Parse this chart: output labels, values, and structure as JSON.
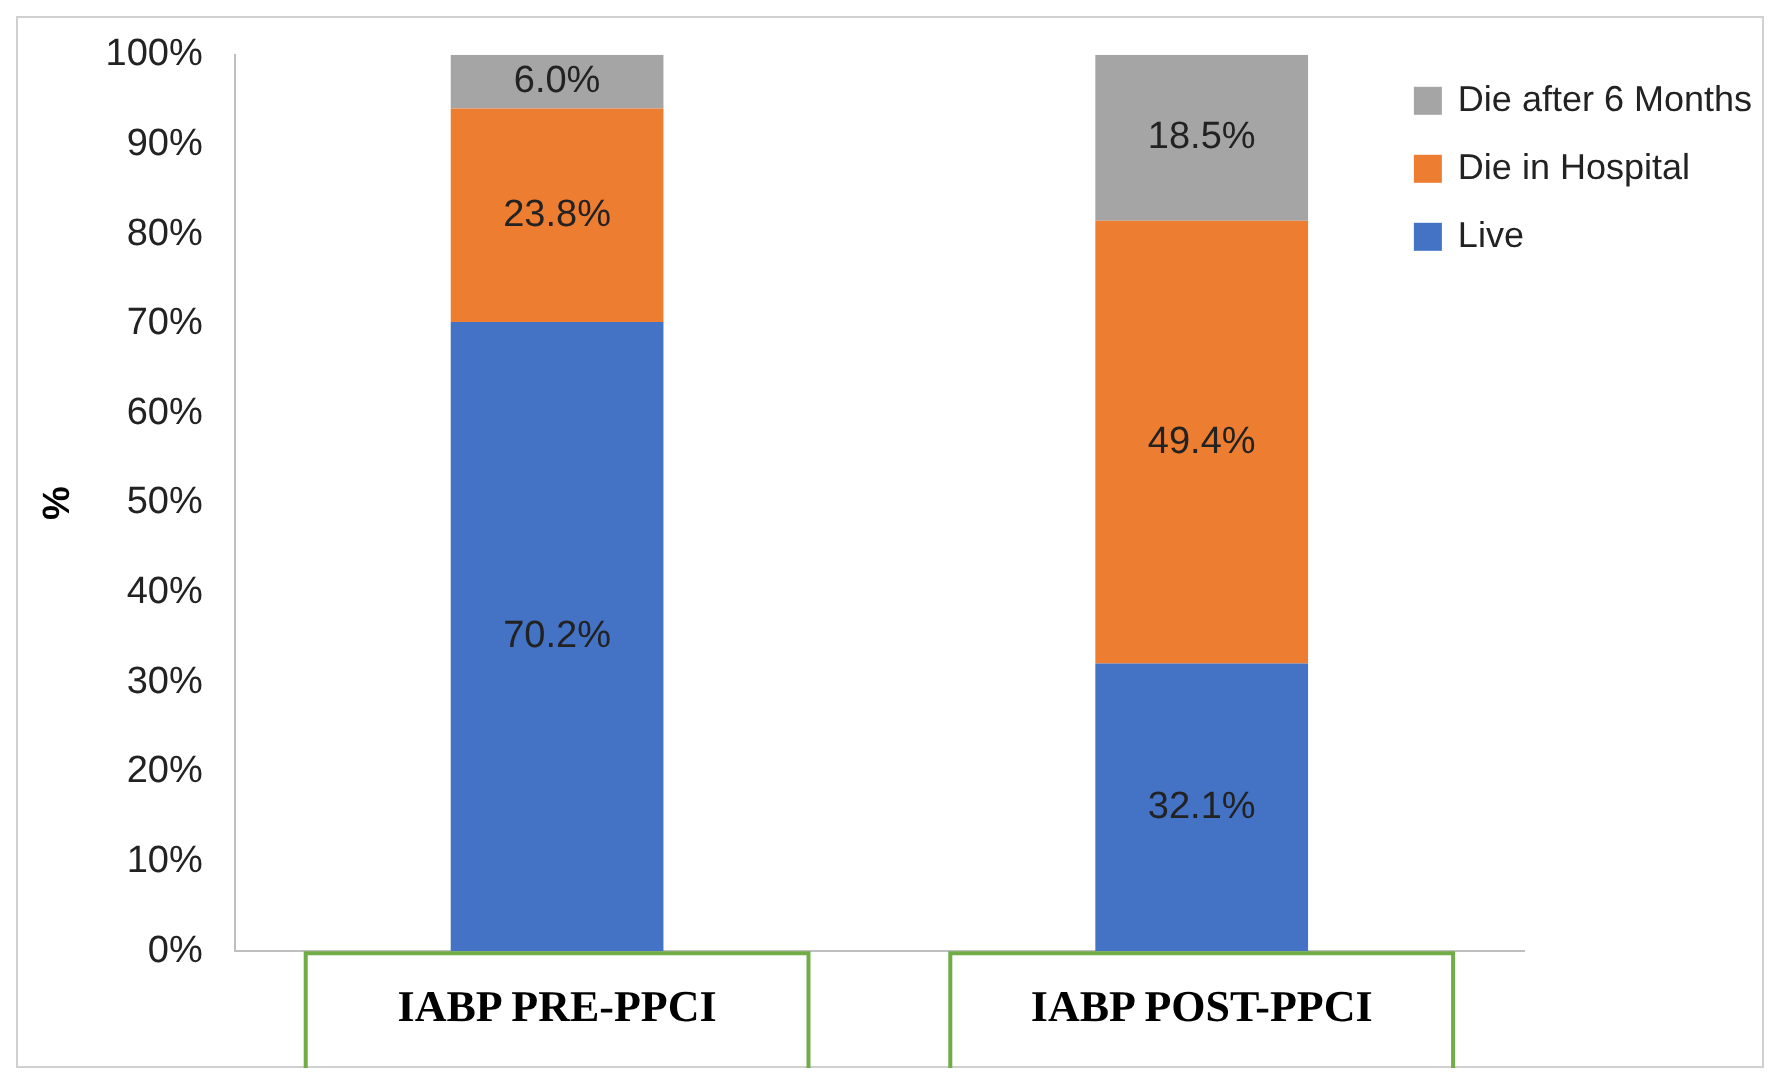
{
  "chart_data": {
    "type": "bar",
    "stacked": true,
    "ylabel": "%",
    "categories": [
      "IABP PRE-PPCI",
      "IABP POST-PPCI"
    ],
    "series": [
      {
        "name": "Live",
        "color": "#4472c4",
        "values": [
          70.2,
          32.1
        ],
        "value_labels": [
          "70.2%",
          "32.1%"
        ]
      },
      {
        "name": "Die in Hospital",
        "color": "#ed7d31",
        "values": [
          23.8,
          49.4
        ],
        "value_labels": [
          "23.8%",
          "49.4%"
        ]
      },
      {
        "name": "Die after 6 Months",
        "color": "#a5a5a5",
        "values": [
          6.0,
          18.5
        ],
        "value_labels": [
          "6.0%",
          "18.5%"
        ]
      }
    ],
    "ylim": [
      0,
      100
    ],
    "yticks": [
      {
        "value": 0,
        "label": "0%"
      },
      {
        "value": 10,
        "label": "10%"
      },
      {
        "value": 20,
        "label": "20%"
      },
      {
        "value": 30,
        "label": "30%"
      },
      {
        "value": 40,
        "label": "40%"
      },
      {
        "value": 50,
        "label": "50%"
      },
      {
        "value": 60,
        "label": "60%"
      },
      {
        "value": 70,
        "label": "70%"
      },
      {
        "value": 80,
        "label": "80%"
      },
      {
        "value": 90,
        "label": "90%"
      },
      {
        "value": 100,
        "label": "100%"
      }
    ],
    "grid": false,
    "legend": "top right"
  }
}
